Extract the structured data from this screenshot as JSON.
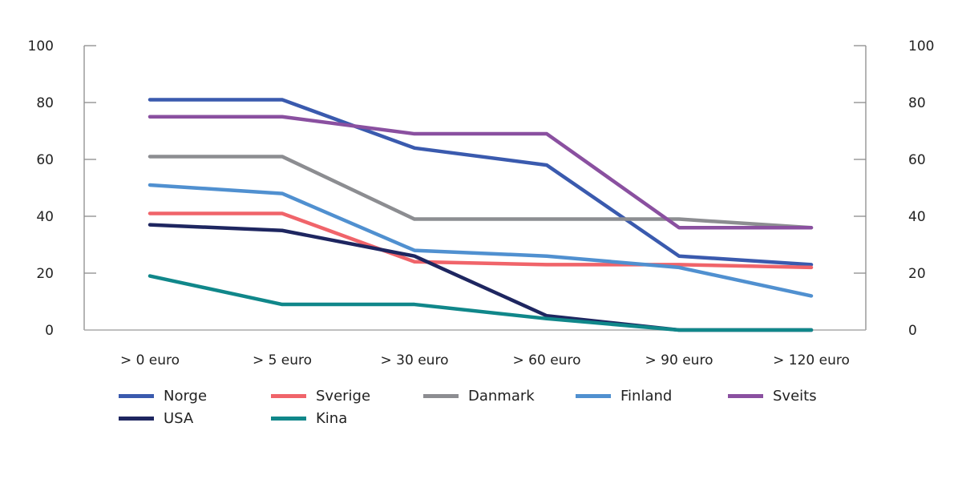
{
  "chart_data": {
    "type": "line",
    "title": "",
    "xlabel": "",
    "ylabel": "",
    "categories": [
      "> 0 euro",
      "> 5 euro",
      "> 30 euro",
      "> 60 euro",
      "> 90 euro",
      "> 120 euro"
    ],
    "ylim": [
      0,
      100
    ],
    "yticks": [
      0,
      20,
      40,
      60,
      80,
      100
    ],
    "ytick_labels": [
      "0",
      "20",
      "40",
      "60",
      "80",
      "100"
    ],
    "grid": false,
    "legend_position": "bottom",
    "series": [
      {
        "name": "Norge",
        "color": "#3a5aae",
        "values": [
          81,
          81,
          64,
          58,
          26,
          23
        ]
      },
      {
        "name": "Sverige",
        "color": "#f0646a",
        "values": [
          41,
          41,
          24,
          23,
          23,
          22
        ]
      },
      {
        "name": "Danmark",
        "color": "#8c8d91",
        "values": [
          61,
          61,
          39,
          39,
          39,
          36
        ]
      },
      {
        "name": "Finland",
        "color": "#5090d0",
        "values": [
          51,
          48,
          28,
          26,
          22,
          12
        ]
      },
      {
        "name": "Sveits",
        "color": "#8a50a0",
        "values": [
          75,
          75,
          69,
          69,
          36,
          36
        ]
      },
      {
        "name": "USA",
        "color": "#1e2660",
        "values": [
          37,
          35,
          26,
          5,
          0,
          0
        ]
      },
      {
        "name": "Kina",
        "color": "#10878a",
        "values": [
          19,
          9,
          9,
          4,
          0,
          0
        ]
      }
    ]
  }
}
